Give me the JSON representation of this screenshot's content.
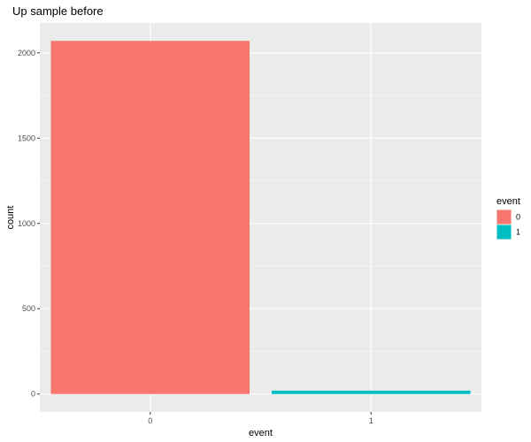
{
  "chart_data": {
    "type": "bar",
    "title": "Up sample before",
    "xlabel": "event",
    "ylabel": "count",
    "categories": [
      "0",
      "1"
    ],
    "values": [
      2070,
      20
    ],
    "ylim": [
      -105,
      2175
    ],
    "yticks": [
      0,
      500,
      1000,
      1500,
      2000
    ],
    "grid": true,
    "legend": {
      "title": "event",
      "position": "right",
      "entries": [
        {
          "label": "0",
          "color": "#F8766D"
        },
        {
          "label": "1",
          "color": "#00BFC4"
        }
      ]
    },
    "colors": [
      "#F8766D",
      "#00BFC4"
    ],
    "panel_background": "#EBEBEB",
    "grid_color": "#FFFFFF"
  }
}
